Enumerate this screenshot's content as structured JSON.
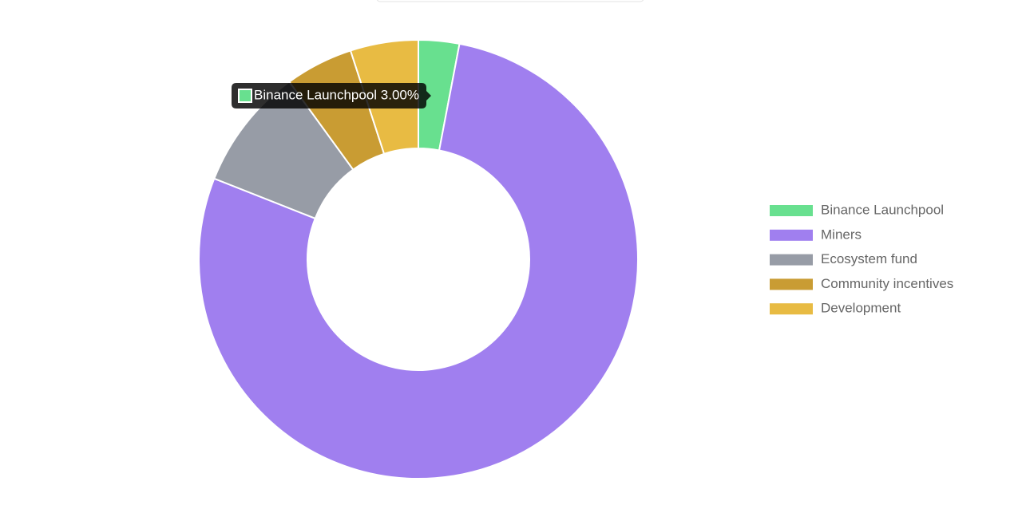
{
  "chart_data": {
    "type": "doughnut",
    "categories": [
      "Binance Launchpool",
      "Miners",
      "Ecosystem fund",
      "Community incentives",
      "Development"
    ],
    "values": [
      3,
      78,
      9,
      5,
      5
    ],
    "colors": [
      "#68e08f",
      "#a07fef",
      "#979ca6",
      "#c99c33",
      "#e8bb43"
    ],
    "legend": "right",
    "tooltip": "Binance Launchpool 3.00%"
  }
}
